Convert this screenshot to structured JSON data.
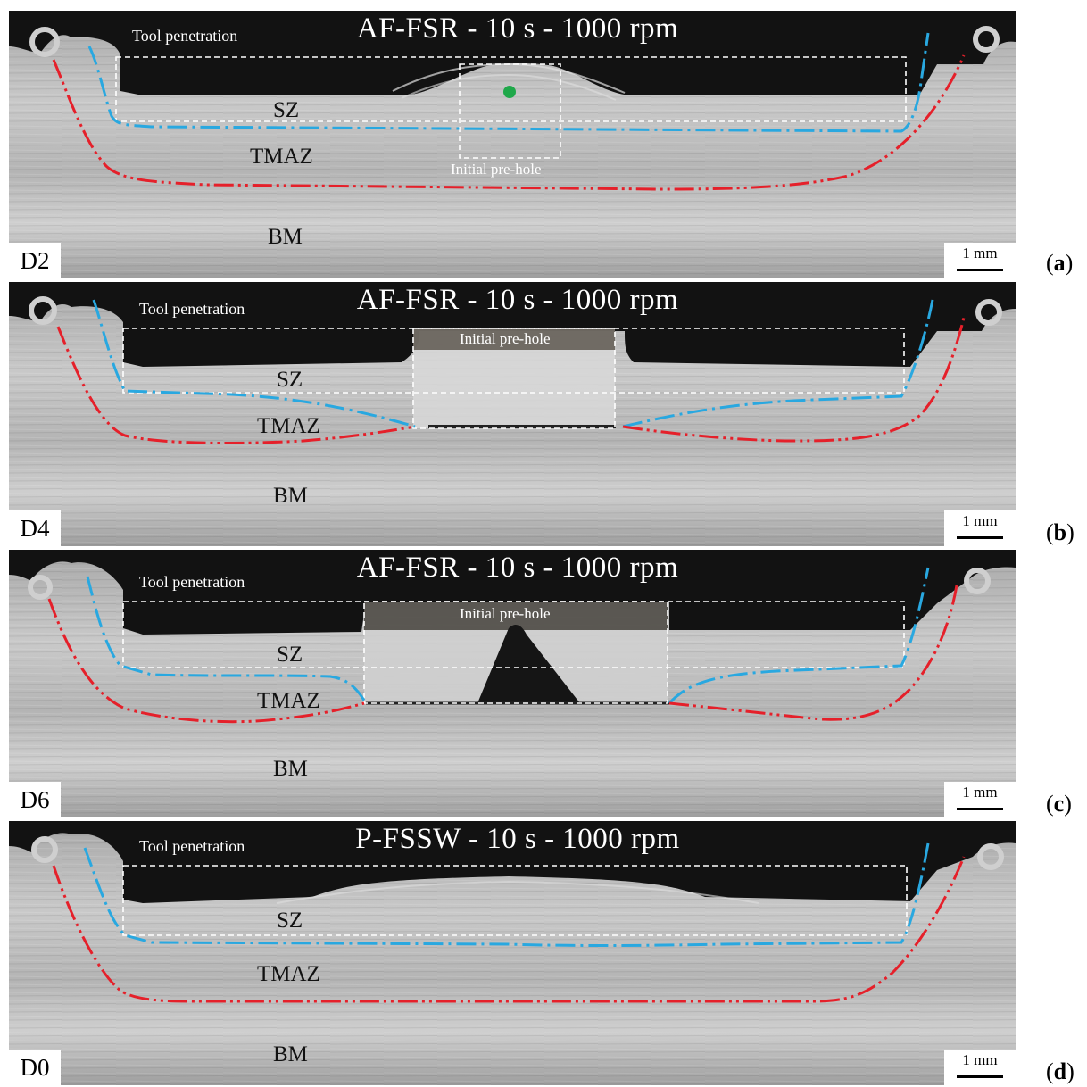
{
  "panels": [
    {
      "title": "AF-FSR - 10 s - 1000 rpm",
      "tool_penetration": "Tool penetration",
      "prehole_label": "Initial pre-hole",
      "zones": {
        "sz": "SZ",
        "tmaz": "TMAZ",
        "bm": "BM"
      },
      "specimen": "D2",
      "scale": "1 mm",
      "sub_open": "(",
      "sub_letter": "a",
      "sub_close": ")"
    },
    {
      "title": "AF-FSR - 10 s - 1000 rpm",
      "tool_penetration": "Tool penetration",
      "prehole_label": "Initial pre-hole",
      "zones": {
        "sz": "SZ",
        "tmaz": "TMAZ",
        "bm": "BM"
      },
      "specimen": "D4",
      "scale": "1 mm",
      "sub_open": "(",
      "sub_letter": "b",
      "sub_close": ")"
    },
    {
      "title": "AF-FSR - 10 s - 1000 rpm",
      "tool_penetration": "Tool penetration",
      "prehole_label": "Initial pre-hole",
      "zones": {
        "sz": "SZ",
        "tmaz": "TMAZ",
        "bm": "BM"
      },
      "specimen": "D6",
      "scale": "1 mm",
      "sub_open": "(",
      "sub_letter": "c",
      "sub_close": ")"
    },
    {
      "title": "P-FSSW - 10 s - 1000 rpm",
      "tool_penetration": "Tool penetration",
      "zones": {
        "sz": "SZ",
        "tmaz": "TMAZ",
        "bm": "BM"
      },
      "specimen": "D0",
      "scale": "1 mm",
      "sub_open": "(",
      "sub_letter": "d",
      "sub_close": ")"
    }
  ],
  "colors": {
    "sz_boundary": "#29a8e0",
    "tmaz_boundary": "#e5202a",
    "marker": "#1fa84a",
    "void": "#121212",
    "metal": "#bdbdbd"
  }
}
